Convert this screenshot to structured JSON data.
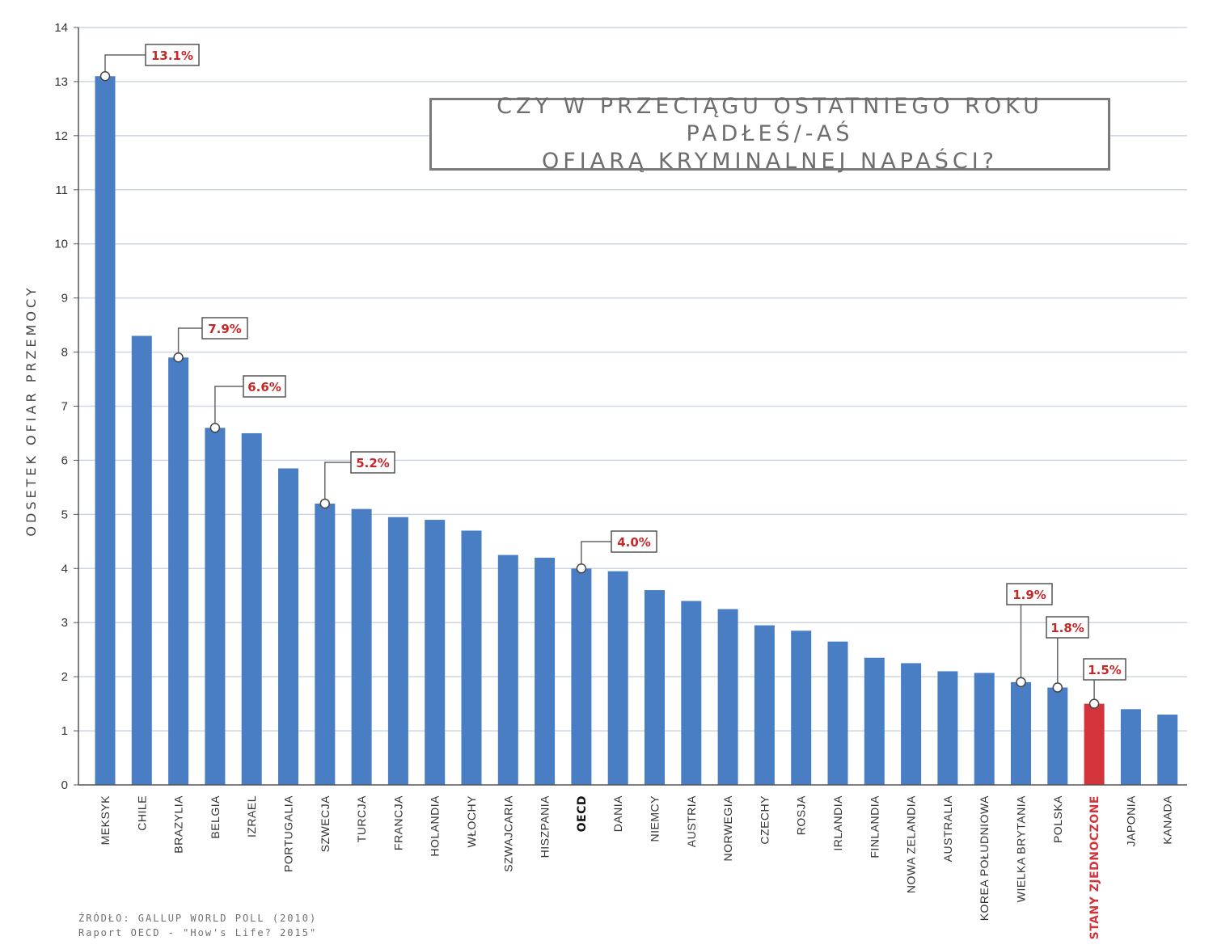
{
  "title": {
    "line1": "CZY W PRZECIĄGU OSTATNIEGO ROKU PADŁEŚ/-AŚ",
    "line2": "OFIARĄ KRYMINALNEJ NAPAŚCI?"
  },
  "source": {
    "line1": "ŹRÓDŁO: GALLUP WORLD POLL (2010)",
    "line2": "Raport OECD - \"How's Life? 2015\""
  },
  "colors": {
    "bar": "#4a7ec4",
    "highlight_bar": "#d3343b",
    "callout_text": "#c62828",
    "grid": "#cdd6e0",
    "axis_text": "#333333"
  },
  "chart_data": {
    "type": "bar",
    "title": "CZY W PRZECIĄGU OSTATNIEGO ROKU PADŁEŚ/-AŚ OFIARĄ KRYMINALNEJ NAPAŚCI?",
    "xlabel": "",
    "ylabel": "ODSETEK OFIAR PRZEMOCY",
    "ylim": [
      0,
      14
    ],
    "yticks": [
      0,
      1,
      2,
      3,
      4,
      5,
      6,
      7,
      8,
      9,
      10,
      11,
      12,
      13,
      14
    ],
    "grid": true,
    "categories": [
      "MEKSYK",
      "CHILE",
      "BRAZYLIA",
      "BELGIA",
      "IZRAEL",
      "PORTUGALIA",
      "SZWECJA",
      "TURCJA",
      "FRANCJA",
      "HOLANDIA",
      "WŁOCHY",
      "SZWAJCARIA",
      "HISZPANIA",
      "OECD",
      "DANIA",
      "NIEMCY",
      "AUSTRIA",
      "NORWEGIA",
      "CZECHY",
      "ROSJA",
      "IRLANDIA",
      "FINLANDIA",
      "NOWA ZELANDIA",
      "AUSTRALIA",
      "KOREA POŁUDNIOWA",
      "WIELKA BRYTANIA",
      "POLSKA",
      "STANY ZJEDNOCZONE",
      "JAPONIA",
      "KANADA"
    ],
    "values": [
      13.1,
      8.3,
      7.9,
      6.6,
      6.5,
      5.85,
      5.2,
      5.1,
      4.95,
      4.9,
      4.7,
      4.25,
      4.2,
      4.0,
      3.95,
      3.6,
      3.4,
      3.25,
      2.95,
      2.85,
      2.65,
      2.35,
      2.25,
      2.1,
      2.07,
      1.9,
      1.8,
      1.5,
      1.4,
      1.3
    ],
    "highlight_category": "STANY ZJEDNOCZONE",
    "bold_category": "OECD",
    "annotations": [
      {
        "category": "MEKSYK",
        "label": "13.1%"
      },
      {
        "category": "BRAZYLIA",
        "label": "7.9%"
      },
      {
        "category": "BELGIA",
        "label": "6.6%"
      },
      {
        "category": "SZWECJA",
        "label": "5.2%"
      },
      {
        "category": "OECD",
        "label": "4.0%"
      },
      {
        "category": "WIELKA BRYTANIA",
        "label": "1.9%"
      },
      {
        "category": "POLSKA",
        "label": "1.8%"
      },
      {
        "category": "STANY ZJEDNOCZONE",
        "label": "1.5%"
      }
    ]
  }
}
